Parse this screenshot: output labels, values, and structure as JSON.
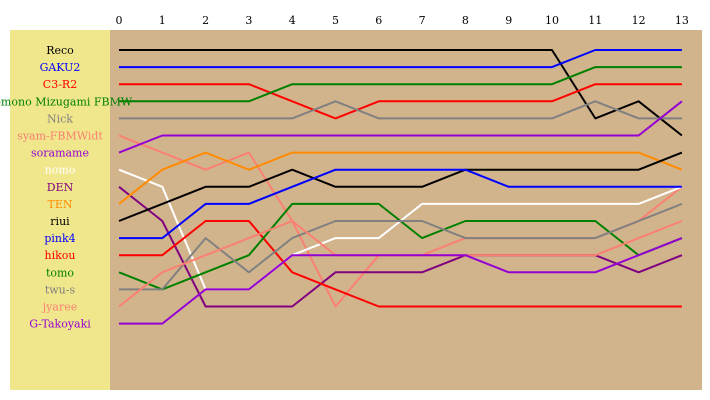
{
  "chart_data": {
    "type": "line",
    "title": "",
    "xlabel": "",
    "ylabel": "",
    "x_ticks": [
      "0",
      "1",
      "2",
      "3",
      "4",
      "5",
      "6",
      "7",
      "8",
      "9",
      "10",
      "11",
      "12",
      "13"
    ],
    "xlim": [
      0,
      13
    ],
    "ylim": [
      1,
      17
    ],
    "y_inverted": true,
    "grid": false,
    "legend_placement": "left",
    "colors": {
      "plot_bg": "#d2b48c",
      "legend_bg": "#f0e68c"
    },
    "series": [
      {
        "name": "Reco",
        "color": "#000000",
        "values": [
          1,
          1,
          1,
          1,
          1,
          1,
          1,
          1,
          1,
          1,
          1,
          5,
          4,
          6
        ]
      },
      {
        "name": "GAKU2",
        "color": "#0000ff",
        "values": [
          2,
          2,
          2,
          2,
          2,
          2,
          2,
          2,
          2,
          2,
          2,
          1,
          1,
          1
        ]
      },
      {
        "name": "C3-R2",
        "color": "#ff0000",
        "values": [
          3,
          3,
          3,
          3,
          4,
          5,
          4,
          4,
          4,
          4,
          4,
          3,
          3,
          3
        ]
      },
      {
        "name": "Tomono Mizugami FBMW",
        "color": "#008000",
        "values": [
          4,
          4,
          4,
          4,
          3,
          3,
          3,
          3,
          3,
          3,
          3,
          2,
          2,
          2
        ]
      },
      {
        "name": "Nick",
        "color": "#808080",
        "values": [
          5,
          5,
          5,
          5,
          5,
          4,
          5,
          5,
          5,
          5,
          5,
          4,
          5,
          5
        ]
      },
      {
        "name": "syam-FBMWidt",
        "color": "#fa8072",
        "values": [
          6,
          7,
          8,
          7,
          11,
          16,
          13,
          13,
          12,
          12,
          12,
          12,
          11,
          9
        ]
      },
      {
        "name": "soramame",
        "color": "#9400d3",
        "values": [
          7,
          6,
          6,
          6,
          6,
          6,
          6,
          6,
          6,
          6,
          6,
          6,
          6,
          4
        ]
      },
      {
        "name": "nomo",
        "color": "#ffffff",
        "values": [
          8,
          9,
          15,
          15,
          13,
          12,
          12,
          10,
          10,
          10,
          10,
          10,
          10,
          9
        ]
      },
      {
        "name": "DEN",
        "color": "#800080",
        "values": [
          9,
          11,
          16,
          16,
          16,
          14,
          14,
          14,
          13,
          13,
          13,
          13,
          14,
          13
        ]
      },
      {
        "name": "TEN",
        "color": "#ff8c00",
        "values": [
          10,
          8,
          7,
          8,
          7,
          7,
          7,
          7,
          7,
          7,
          7,
          7,
          7,
          8
        ]
      },
      {
        "name": "riui",
        "color": "#000000",
        "values": [
          11,
          10,
          9,
          9,
          8,
          9,
          9,
          9,
          8,
          8,
          8,
          8,
          8,
          7
        ]
      },
      {
        "name": "pink4",
        "color": "#0000ff",
        "values": [
          12,
          12,
          10,
          10,
          9,
          8,
          8,
          8,
          8,
          9,
          9,
          9,
          9,
          9
        ]
      },
      {
        "name": "hikou",
        "color": "#ff0000",
        "values": [
          13,
          13,
          11,
          11,
          14,
          15,
          16,
          16,
          16,
          16,
          16,
          16,
          16,
          16
        ]
      },
      {
        "name": "tomo",
        "color": "#008000",
        "values": [
          14,
          15,
          14,
          13,
          10,
          10,
          10,
          12,
          11,
          11,
          11,
          11,
          13,
          12
        ]
      },
      {
        "name": "twu-s",
        "color": "#808080",
        "values": [
          15,
          15,
          12,
          14,
          12,
          11,
          11,
          11,
          12,
          12,
          12,
          12,
          11,
          10
        ]
      },
      {
        "name": "jyaree",
        "color": "#fa8072",
        "values": [
          16,
          14,
          13,
          12,
          11,
          13,
          13,
          13,
          13,
          13,
          13,
          13,
          12,
          11
        ]
      },
      {
        "name": "G-Takoyaki",
        "color": "#9400d3",
        "values": [
          17,
          17,
          15,
          15,
          13,
          13,
          13,
          13,
          13,
          14,
          14,
          14,
          13,
          12
        ]
      }
    ]
  }
}
